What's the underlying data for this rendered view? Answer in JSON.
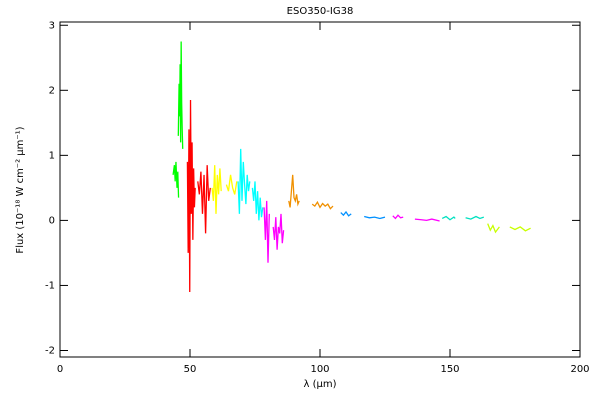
{
  "chart_data": {
    "type": "line",
    "title": "ESO350-IG38",
    "xlabel": "λ (µm)",
    "ylabel": "Flux (10⁻¹⁸ W cm⁻² µm⁻¹)",
    "xlim": [
      0,
      200
    ],
    "xticks": [
      0,
      50,
      100,
      150,
      200
    ],
    "ylim": [
      -2.1,
      3.05
    ],
    "yticks": [
      -2,
      -1,
      0,
      1,
      2,
      3
    ],
    "series": [
      {
        "color": "#00ff00",
        "x": [
          43.5,
          44,
          44.3,
          44.6,
          45,
          45.3,
          45.6
        ],
        "values": [
          0.7,
          0.85,
          0.6,
          0.9,
          0.5,
          0.75,
          0.35
        ]
      },
      {
        "color": "#00ff00",
        "x": [
          45.5,
          45.8,
          46,
          46.2,
          46.4,
          46.6,
          46.8,
          47,
          47.2
        ],
        "values": [
          1.3,
          2.1,
          1.6,
          2.4,
          1.2,
          2.75,
          1.8,
          1.4,
          1.1
        ]
      },
      {
        "color": "#ff0000",
        "x": [
          49,
          49.3,
          49.6,
          49.9,
          50.2,
          50.5,
          50.8,
          51.1,
          51.4,
          51.7,
          52
        ],
        "values": [
          0.9,
          -0.5,
          1.4,
          -1.1,
          1.85,
          0.1,
          1.2,
          -0.3,
          0.8,
          0.2,
          0.5
        ]
      },
      {
        "color": "#ff0000",
        "x": [
          53,
          53.6,
          54.2,
          54.8,
          55.4,
          56,
          56.6,
          57.2,
          57.8
        ],
        "values": [
          0.6,
          0.4,
          0.75,
          0.1,
          0.7,
          -0.2,
          0.85,
          0.3,
          0.5
        ]
      },
      {
        "color": "#ffff00",
        "x": [
          58.5,
          59,
          59.5,
          60,
          60.5,
          61,
          61.5,
          62
        ],
        "values": [
          0.5,
          0.3,
          0.85,
          0.1,
          0.7,
          0.4,
          0.8,
          0.45
        ]
      },
      {
        "color": "#ffff00",
        "x": [
          64,
          64.8,
          65.6,
          66.4,
          67.2,
          68
        ],
        "values": [
          0.55,
          0.45,
          0.7,
          0.5,
          0.4,
          0.6
        ]
      },
      {
        "color": "#00ffff",
        "x": [
          68.5,
          69,
          69.5,
          70,
          70.5,
          71,
          71.5,
          72,
          72.5,
          73
        ],
        "values": [
          0.6,
          0.1,
          1.1,
          0.3,
          0.9,
          0.55,
          0.25,
          0.7,
          0.45,
          0.6
        ]
      },
      {
        "color": "#00ffff",
        "x": [
          74,
          74.5,
          75,
          75.5,
          76,
          76.5,
          77,
          77.5,
          78
        ],
        "values": [
          0.5,
          0.3,
          0.6,
          0.1,
          0.45,
          0.0,
          0.35,
          0.05,
          0.2
        ]
      },
      {
        "color": "#ff00ff",
        "x": [
          78.5,
          79,
          79.5,
          80,
          80.5
        ],
        "values": [
          0.2,
          -0.3,
          0.3,
          -0.65,
          0.1
        ]
      },
      {
        "color": "#ff00ff",
        "x": [
          82,
          82.5,
          83,
          83.5,
          84,
          84.5,
          85,
          85.5,
          86
        ],
        "values": [
          -0.1,
          -0.3,
          0.05,
          -0.45,
          -0.1,
          -0.2,
          0.1,
          -0.35,
          -0.15
        ]
      },
      {
        "color": "#f09000",
        "x": [
          88,
          88.5,
          89,
          89.5,
          90,
          90.5,
          91,
          91.5,
          92
        ],
        "values": [
          0.3,
          0.2,
          0.45,
          0.7,
          0.35,
          0.3,
          0.4,
          0.25,
          0.3
        ]
      },
      {
        "color": "#f09000",
        "x": [
          97,
          98,
          99,
          100,
          101,
          102,
          103,
          104,
          105
        ],
        "values": [
          0.25,
          0.22,
          0.28,
          0.2,
          0.26,
          0.22,
          0.25,
          0.18,
          0.22
        ]
      },
      {
        "color": "#0090ff",
        "x": [
          108,
          109,
          110,
          111,
          112
        ],
        "values": [
          0.12,
          0.08,
          0.13,
          0.07,
          0.1
        ]
      },
      {
        "color": "#0090ff",
        "x": [
          117,
          119,
          121,
          123,
          125
        ],
        "values": [
          0.06,
          0.04,
          0.05,
          0.03,
          0.05
        ]
      },
      {
        "color": "#ff00ff",
        "x": [
          128,
          129,
          130,
          131,
          132
        ],
        "values": [
          0.07,
          0.03,
          0.08,
          0.04,
          0.05
        ]
      },
      {
        "color": "#ff00ff",
        "x": [
          136.5,
          139,
          141,
          143,
          146
        ],
        "values": [
          0.02,
          0.01,
          0.0,
          0.02,
          -0.01
        ]
      },
      {
        "color": "#00e0c0",
        "x": [
          147,
          148.5,
          150,
          151.5,
          152
        ],
        "values": [
          0.03,
          0.06,
          0.01,
          0.05,
          0.03
        ]
      },
      {
        "color": "#00e0c0",
        "x": [
          156,
          158,
          160,
          161.5,
          163
        ],
        "values": [
          0.04,
          0.02,
          0.06,
          0.03,
          0.05
        ]
      },
      {
        "color": "#c8ff00",
        "x": [
          164.5,
          165.5,
          166.5,
          167.5,
          169
        ],
        "values": [
          -0.05,
          -0.15,
          -0.08,
          -0.18,
          -0.1
        ]
      },
      {
        "color": "#c8ff00",
        "x": [
          173,
          175,
          177,
          179,
          181
        ],
        "values": [
          -0.1,
          -0.14,
          -0.1,
          -0.16,
          -0.12
        ]
      }
    ]
  }
}
